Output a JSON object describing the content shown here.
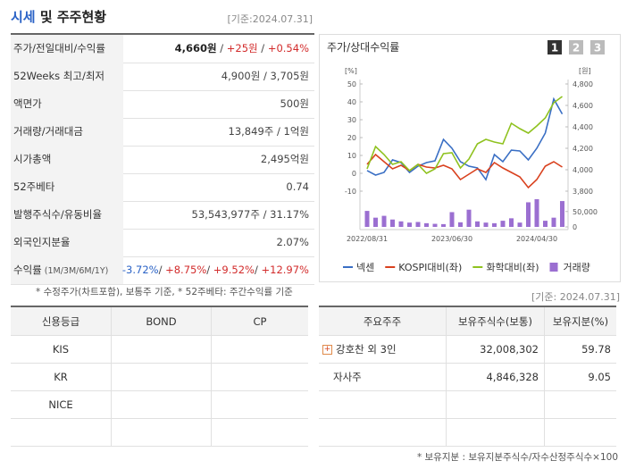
{
  "header": {
    "title_accent": "시세",
    "title": " 및 주주현황",
    "basis": "[기준:2024.07.31]"
  },
  "summary": {
    "rows": [
      {
        "label": "주가/전일대비/수익률",
        "value": [
          {
            "text": "4,660원",
            "tone": "strong"
          },
          {
            "text": " / ",
            "tone": "plain"
          },
          {
            "text": "+25원",
            "tone": "up"
          },
          {
            "text": " / ",
            "tone": "plain"
          },
          {
            "text": "+0.54%",
            "tone": "up"
          }
        ]
      },
      {
        "label": "52Weeks 최고/최저",
        "value": [
          {
            "text": "4,900원 / 3,705원",
            "tone": "plain"
          }
        ]
      },
      {
        "label": "액면가",
        "value": [
          {
            "text": "500원",
            "tone": "plain"
          }
        ]
      },
      {
        "label": "거래량/거래대금",
        "value": [
          {
            "text": "13,849주 / 1억원",
            "tone": "plain"
          }
        ]
      },
      {
        "label": "시가총액",
        "value": [
          {
            "text": "2,495억원",
            "tone": "plain"
          }
        ]
      },
      {
        "label": "52주베타",
        "value": [
          {
            "text": "0.74",
            "tone": "plain"
          }
        ]
      },
      {
        "label": "발행주식수/유동비율",
        "value": [
          {
            "text": "53,543,977주 / 31.17%",
            "tone": "plain"
          }
        ]
      },
      {
        "label": "외국인지분율",
        "value": [
          {
            "text": "2.07%",
            "tone": "plain"
          }
        ]
      },
      {
        "label": "수익률",
        "label_note": " (1M/3M/6M/1Y)",
        "value": [
          {
            "text": "-3.72%",
            "tone": "down"
          },
          {
            "text": "/ ",
            "tone": "plain"
          },
          {
            "text": "+8.75%",
            "tone": "up"
          },
          {
            "text": "/ ",
            "tone": "plain"
          },
          {
            "text": "+9.52%",
            "tone": "up"
          },
          {
            "text": "/ ",
            "tone": "plain"
          },
          {
            "text": "+12.97%",
            "tone": "up"
          }
        ]
      }
    ],
    "note": "* 수정주가(차트포함), 보통주 기준, * 52주베타: 주간수익률 기준"
  },
  "chart_data": {
    "type": "line",
    "title": "주가/상대수익률",
    "buttons": [
      "1",
      "2",
      "3"
    ],
    "y_unit": "[%]",
    "y2_unit": "[원]",
    "categories": [
      "2022/08/31",
      null,
      null,
      null,
      null,
      null,
      null,
      null,
      null,
      null,
      "2023/06/30",
      null,
      null,
      null,
      null,
      null,
      null,
      null,
      null,
      null,
      "2024/04/30",
      null,
      null,
      null
    ],
    "series": [
      {
        "name": "넥센",
        "color": "#3a6fc4",
        "axis": "y2",
        "values": [
          3992,
          3950,
          3975,
          4092,
          4067,
          3975,
          4033,
          4067,
          4083,
          4283,
          4200,
          4075,
          4033,
          4017,
          3908,
          4142,
          4075,
          4183,
          4175,
          4092,
          4200,
          4342,
          4660,
          4520
        ]
      },
      {
        "name": "KOSPI대비(좌)",
        "color": "#d9411e",
        "values": [
          5,
          10.5,
          6.5,
          2.5,
          4.5,
          1.5,
          5,
          3.5,
          3,
          4.5,
          2.5,
          -3.5,
          -0.5,
          2.5,
          0.5,
          6,
          3,
          0.5,
          -2,
          -8,
          -3.5,
          4,
          6.5,
          3.5
        ]
      },
      {
        "name": "화학대비(좌)",
        "color": "#8fc21f",
        "values": [
          2.5,
          15,
          10.5,
          5,
          6.5,
          1.5,
          5,
          0,
          2.5,
          11,
          11.5,
          3,
          8,
          16.5,
          19,
          17.5,
          16.5,
          28,
          25,
          22.5,
          26.5,
          31,
          39.5,
          43
        ]
      },
      {
        "name": "거래량",
        "color": "#9b6fd1",
        "axis": "y3",
        "kind": "bar",
        "values": [
          52000,
          30000,
          36000,
          24000,
          18000,
          14000,
          16000,
          12000,
          10000,
          9000,
          48000,
          15000,
          56000,
          18000,
          14000,
          12000,
          20000,
          28000,
          14000,
          80000,
          90000,
          20000,
          30000,
          84000
        ]
      }
    ],
    "ylim": [
      -10,
      50
    ],
    "yticks": [
      -10,
      0,
      10,
      20,
      30,
      40,
      50
    ],
    "y2lim": [
      3800,
      4800
    ],
    "y2ticks": [
      {
        "value": 3800,
        "label": "3,800"
      },
      {
        "value": 4000,
        "label": "4,000"
      },
      {
        "value": 4200,
        "label": "4,200"
      },
      {
        "value": 4400,
        "label": "4,400"
      },
      {
        "value": 4600,
        "label": "4,600"
      },
      {
        "value": 4800,
        "label": "4,800"
      }
    ],
    "y3lim": [
      0,
      90000
    ],
    "y3ticks": [
      0,
      {
        "value": 50000,
        "label": "50,000"
      }
    ]
  },
  "basis2": "[기준: 2024.07.31]",
  "credit": {
    "headers": [
      "신용등급",
      "BOND",
      "CP"
    ],
    "agencies": [
      "KIS",
      "KR",
      "NICE"
    ]
  },
  "holders": {
    "headers": [
      "주요주주",
      "보유주식수(보통)",
      "보유지분(%)"
    ],
    "rows": [
      {
        "name": "강호찬 외 3인",
        "shares": "32,008,302",
        "pct": 59.78,
        "icon": true
      },
      {
        "name": "자사주",
        "shares": "4,846,328",
        "pct": 9.05
      }
    ],
    "note": "* 보유지분 : 보유지분주식수/자수산정주식수×100"
  }
}
